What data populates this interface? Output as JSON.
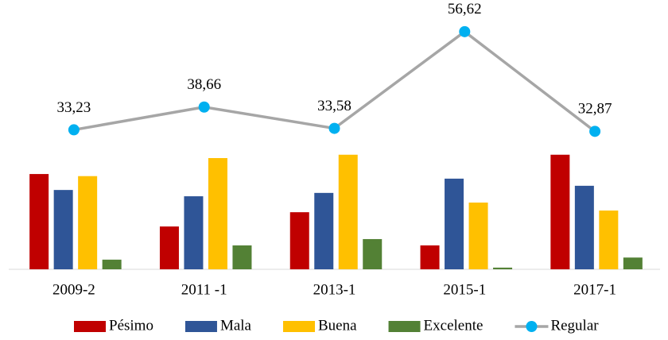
{
  "chart_data": {
    "type": "bar",
    "categories": [
      "2009-2",
      "2011 -1",
      "2013-1",
      "2015-1",
      "2017-1"
    ],
    "ylim": [
      0,
      60
    ],
    "series": [
      {
        "name": "Pésimo",
        "color": "#C00000",
        "values": [
          22.7,
          10.2,
          13.6,
          5.7,
          27.3
        ]
      },
      {
        "name": "Mala",
        "color": "#2F5597",
        "values": [
          18.9,
          17.4,
          18.2,
          21.6,
          19.9
        ]
      },
      {
        "name": "Buena",
        "color": "#FFC000",
        "values": [
          22.2,
          26.5,
          27.3,
          15.9,
          14.0
        ]
      },
      {
        "name": "Excelente",
        "color": "#538135",
        "values": [
          2.3,
          5.7,
          7.2,
          0.4,
          2.8
        ]
      },
      {
        "name": "Regular",
        "type": "line",
        "color": "#A6A6A6",
        "marker_color": "#00B0F0",
        "values": [
          33.23,
          38.66,
          33.58,
          56.62,
          32.87
        ],
        "value_labels": [
          "33,23",
          "38,66",
          "33,58",
          "56,62",
          "32,87"
        ]
      }
    ]
  }
}
